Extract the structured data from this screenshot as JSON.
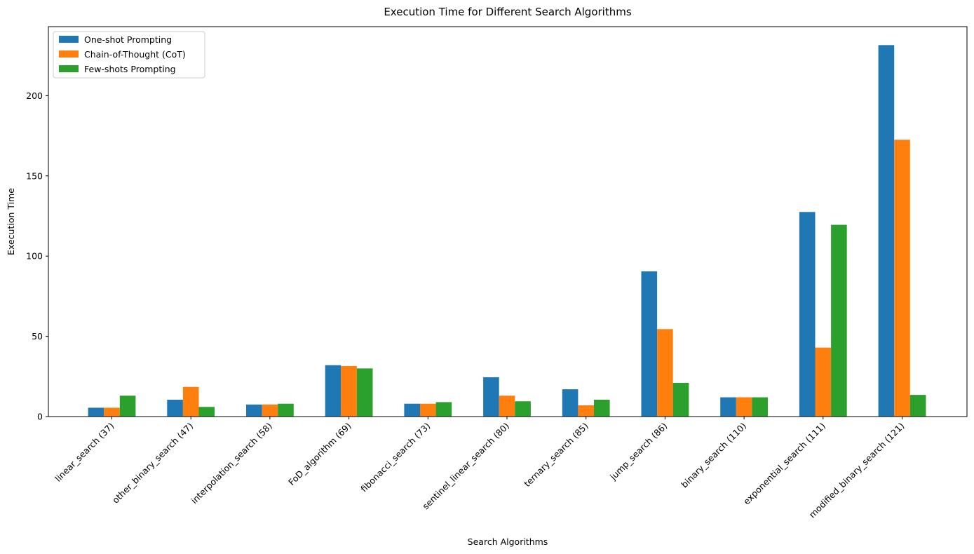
{
  "chart_data": {
    "type": "bar",
    "title": "Execution Time for Different Search Algorithms",
    "xlabel": "Search Algorithms",
    "ylabel": "Execution Time",
    "ylim": [
      0,
      243
    ],
    "yticks": [
      0,
      50,
      100,
      150,
      200
    ],
    "grid": false,
    "legend_position": "top-left",
    "categories": [
      "linear_search (37)",
      "other_binary_search (47)",
      "interpolation_search (58)",
      "FoD_algorithm (69)",
      "fibonacci_search (73)",
      "sentinel_linear_search (80)",
      "ternary_search (85)",
      "jump_search (86)",
      "binary_search (110)",
      "exponential_search (111)",
      "modified_binary_search (121)"
    ],
    "series": [
      {
        "name": "One-shot Prompting",
        "color": "#1f77b4",
        "values": [
          5.5,
          10.5,
          7.5,
          32,
          8,
          24.5,
          17,
          90.5,
          12,
          127.5,
          231.5
        ]
      },
      {
        "name": "Chain-of-Thought (CoT)",
        "color": "#ff7f0e",
        "values": [
          5.5,
          18.5,
          7.5,
          31.5,
          8,
          13,
          7,
          54.5,
          12,
          43,
          172.5
        ]
      },
      {
        "name": "Few-shots Prompting",
        "color": "#2ca02c",
        "values": [
          13,
          6,
          8,
          30,
          9,
          9.5,
          10.5,
          21,
          12,
          119.5,
          13.5
        ]
      }
    ]
  }
}
